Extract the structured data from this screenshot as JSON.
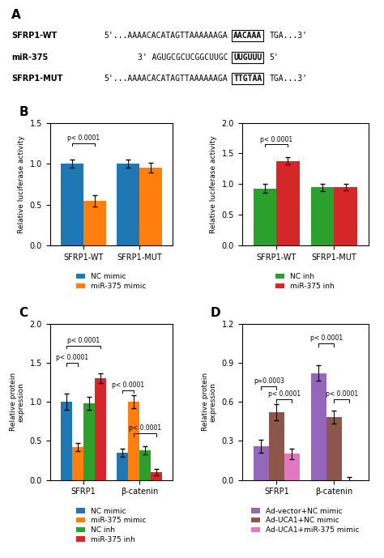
{
  "chart_data": [
    {
      "type": "sequence",
      "title": "A",
      "annotations": [
        {
          "label": "SFRP1-WT",
          "seq_before": "5'...AAAACACATAGTTAAAAAAGA",
          "seq_box": "AACAAA",
          "seq_after": "TGA...3'"
        },
        {
          "label": "miR-375",
          "seq_before": "3' AGUGCGCUCGGCUUGC",
          "seq_box": "UUGUUU",
          "seq_after": "5'"
        },
        {
          "label": "SFRP1-MUT",
          "seq_before": "5'...AAAACACATAGTTAAAAAAGA",
          "seq_box": "TTGTAA",
          "seq_after": "TGA...3'"
        }
      ]
    },
    {
      "type": "bar",
      "title": "B",
      "ylabel": "Relative luciferase activity",
      "ylim": [
        0,
        1.5
      ],
      "yticks": [
        {
          "value": 0.0,
          "label": "0.0"
        },
        {
          "value": 0.5,
          "label": "0.5"
        },
        {
          "value": 1.0,
          "label": "1.0"
        },
        {
          "value": 1.5,
          "label": "1.5"
        }
      ],
      "categories": [
        "SFRP1-WT",
        "SFRP1-MUT"
      ],
      "series": [
        {
          "name": "NC mimic",
          "values": [
            1.0,
            1.0
          ],
          "errors": [
            0.05,
            0.05
          ]
        },
        {
          "name": "miR-375 mimic",
          "values": [
            0.55,
            0.95
          ],
          "errors": [
            0.07,
            0.06
          ]
        }
      ],
      "annotations": [
        {
          "text": "p< 0.0001",
          "category": "SFRP1-WT",
          "series": [
            "NC mimic",
            "miR-375 mimic"
          ],
          "y": 1.25
        }
      ]
    },
    {
      "type": "bar",
      "ylabel": "Relative luciferase activity",
      "ylim": [
        0,
        2.0
      ],
      "yticks": [
        {
          "value": 0.0,
          "label": "0.0"
        },
        {
          "value": 0.5,
          "label": "0.5"
        },
        {
          "value": 1.0,
          "label": "1.0"
        },
        {
          "value": 1.5,
          "label": "1.5"
        },
        {
          "value": 2.0,
          "label": "2.0"
        }
      ],
      "categories": [
        "SFRP1-WT",
        "SFRP1-MUT"
      ],
      "series": [
        {
          "name": "NC inh",
          "values": [
            0.93,
            0.95
          ],
          "errors": [
            0.07,
            0.06
          ]
        },
        {
          "name": "miR-375 inh",
          "values": [
            1.38,
            0.95
          ],
          "errors": [
            0.06,
            0.05
          ]
        }
      ],
      "annotations": [
        {
          "text": "p< 0.0001",
          "category": "SFRP1-WT",
          "series": [
            "NC inh",
            "miR-375 inh"
          ],
          "y": 1.65
        }
      ]
    },
    {
      "type": "bar",
      "title": "C",
      "ylabel": "Relative protein\nexpression",
      "ylim": [
        0,
        2.0
      ],
      "yticks": [
        {
          "value": 0.0,
          "label": "0.0"
        },
        {
          "value": 0.5,
          "label": "0.5"
        },
        {
          "value": 1.0,
          "label": "1.0"
        },
        {
          "value": 1.5,
          "label": "1.5"
        },
        {
          "value": 2.0,
          "label": "2.0"
        }
      ],
      "categories": [
        "SFRP1",
        "β-catenin"
      ],
      "series": [
        {
          "name": "NC mimic",
          "values": [
            1.0,
            0.35
          ],
          "errors": [
            0.1,
            0.05
          ]
        },
        {
          "name": "miR-375 mimic",
          "values": [
            0.42,
            1.0
          ],
          "errors": [
            0.05,
            0.08
          ]
        },
        {
          "name": "NC inh",
          "values": [
            0.98,
            0.38
          ],
          "errors": [
            0.08,
            0.05
          ]
        },
        {
          "name": "miR-375 inh",
          "values": [
            1.3,
            0.1
          ],
          "errors": [
            0.06,
            0.04
          ]
        }
      ],
      "annotations": [
        {
          "text": "p< 0.0001",
          "category": "SFRP1",
          "series": [
            "NC mimic",
            "miR-375 mimic"
          ],
          "y": 1.5
        },
        {
          "text": "p< 0.0001",
          "category": "SFRP1",
          "series": [
            "NC mimic",
            "miR-375 inh"
          ],
          "y": 1.72
        },
        {
          "text": "p< 0.0001",
          "category": "β-catenin",
          "series": [
            "NC mimic",
            "miR-375 mimic"
          ],
          "y": 1.15
        },
        {
          "text": "p< 0.0001",
          "category": "β-catenin",
          "series": [
            "miR-375 mimic",
            "miR-375 inh"
          ],
          "y": 0.6
        }
      ]
    },
    {
      "type": "bar",
      "title": "D",
      "ylabel": "Relative protein\nexpression",
      "ylim": [
        0,
        1.2
      ],
      "yticks": [
        {
          "value": 0.0,
          "label": "0.0"
        },
        {
          "value": 0.3,
          "label": "0.3"
        },
        {
          "value": 0.6,
          "label": "0.6"
        },
        {
          "value": 0.9,
          "label": "0.9"
        },
        {
          "value": 1.2,
          "label": "1.2"
        }
      ],
      "categories": [
        "SFRP1",
        "β-catenin"
      ],
      "series": [
        {
          "name": "Ad-vector+NC mimic",
          "values": [
            0.26,
            0.82
          ],
          "errors": [
            0.05,
            0.06
          ]
        },
        {
          "name": "Ad-UCA1+NC mimic",
          "values": [
            0.52,
            0.48
          ],
          "errors": [
            0.06,
            0.05
          ]
        },
        {
          "name": "Ad-UCA1+miR-375 mimic",
          "values": [
            0.2,
            0.0
          ],
          "errors": [
            0.04,
            0.02
          ]
        }
      ],
      "annotations": [
        {
          "text": "p=0.0003",
          "category": "SFRP1",
          "series": [
            "Ad-vector+NC mimic",
            "Ad-UCA1+NC mimic"
          ],
          "y": 0.72
        },
        {
          "text": "p< 0.0001",
          "category": "SFRP1",
          "series": [
            "Ad-UCA1+NC mimic",
            "Ad-UCA1+miR-375 mimic"
          ],
          "y": 0.62
        },
        {
          "text": "p< 0.0001",
          "category": "β-catenin",
          "series": [
            "Ad-vector+NC mimic",
            "Ad-UCA1+NC mimic"
          ],
          "y": 1.05
        },
        {
          "text": "p< 0.0001",
          "category": "β-catenin",
          "series": [
            "Ad-UCA1+NC mimic",
            "Ad-UCA1+miR-375 mimic"
          ],
          "y": 0.62
        }
      ]
    }
  ]
}
